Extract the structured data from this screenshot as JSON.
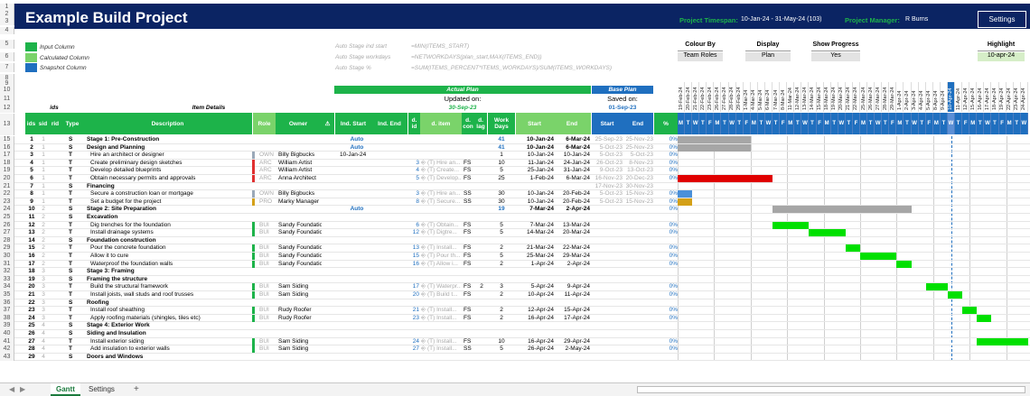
{
  "header": {
    "title": "Example Build Project",
    "timespan_label": "Project Timespan:",
    "timespan_value": "10-Jan-24  -  31-May-24 (103)",
    "manager_label": "Project Manager:",
    "manager_value": "R Burns",
    "settings_label": "Settings"
  },
  "legend": [
    {
      "label": "Input Column",
      "color": "#1db34a"
    },
    {
      "label": "Calculated Column",
      "color": "#7ad36a"
    },
    {
      "label": "Snapshot Column",
      "color": "#1f6fbf"
    }
  ],
  "auto_stage": [
    {
      "label": "Auto Stage ind start",
      "formula": "=MIN(ITEMS_START)"
    },
    {
      "label": "Auto Stage workdays",
      "formula": "=NETWORKDAYS(plan_start,MAX(ITEMS_END))"
    },
    {
      "label": "Auto Stage %",
      "formula": "=SUM(ITEMS_PERCENT*ITEMS_WORKDAYS)/SUM(ITEMS_WORKDAYS)"
    }
  ],
  "controls": [
    {
      "label": "Colour By",
      "value": "Team Roles"
    },
    {
      "label": "Display",
      "value": "Plan"
    },
    {
      "label": "Show Progress",
      "value": "Yes"
    },
    {
      "label": "Highlight",
      "value": "10-apr-24"
    }
  ],
  "plan": {
    "actual_title": "Actual Plan",
    "updated_on": "Updated on:",
    "updated_date": "30-Sep-23",
    "base_title": "Base Plan",
    "saved_on": "Saved on:",
    "saved_date": "01-Sep-23"
  },
  "groups": {
    "ids": "ids",
    "item_details": "Item Details"
  },
  "columns": {
    "ids": "ids",
    "sid": "sid",
    "rid": "rid",
    "type": "Type",
    "description": "Description",
    "role": "Role",
    "owner": "Owner",
    "warn": "⚠",
    "ind_start": "Ind. Start",
    "ind_end": "Ind. End",
    "d_id": "d. id",
    "d_item": "d. item",
    "d_con": "d. con",
    "d_lag": "d. lag",
    "work_days": "Work Days",
    "start": "Start",
    "end": "End",
    "base_start": "Start",
    "base_end": "End",
    "pct": "%"
  },
  "gantt_dates": [
    "19-Feb-24",
    "20-Feb-24",
    "21-Feb-24",
    "22-Feb-24",
    "23-Feb-24",
    "26-Feb-24",
    "27-Feb-24",
    "28-Feb-24",
    "29-Feb-24",
    "1-Mar-24",
    "4-Mar-24",
    "5-Mar-24",
    "6-Mar-24",
    "7-Mar-24",
    "8-Mar-24",
    "11-Mar-24",
    "12-Mar-24",
    "13-Mar-24",
    "14-Mar-24",
    "15-Mar-24",
    "18-Mar-24",
    "19-Mar-24",
    "20-Mar-24",
    "21-Mar-24",
    "22-Mar-24",
    "25-Mar-24",
    "26-Mar-24",
    "27-Mar-24",
    "28-Mar-24",
    "29-Mar-24",
    "1-Apr-24",
    "2-Apr-24",
    "3-Apr-24",
    "4-Apr-24",
    "5-Apr-24",
    "8-Apr-24",
    "9-Apr-24",
    "10-Apr-24",
    "11-Apr-24",
    "12-Apr-24",
    "15-Apr-24",
    "16-Apr-24",
    "17-Apr-24",
    "18-Apr-24",
    "19-Apr-24",
    "22-Apr-24",
    "23-Apr-24",
    "24-Apr-24"
  ],
  "weekdays": [
    "M",
    "T",
    "W",
    "T",
    "F"
  ],
  "rows": [
    {
      "r": "15",
      "id": "1",
      "sid": "1",
      "rid": "",
      "type": "S",
      "desc": "Stage 1: Pre-Construction",
      "bold": true,
      "indent": 0,
      "role": "",
      "roleColor": "",
      "owner": "",
      "indStart": "Auto",
      "did": "",
      "ditem": "",
      "dcon": "",
      "dlag": "",
      "work": "41",
      "start": "10-Jan-24",
      "end": "6-Mar-24",
      "bstart": "25-Sep-23",
      "bend": "25-Nov-23",
      "pct": "0%",
      "bar": {
        "from": 0,
        "to": 10,
        "color": "#a6a6a6"
      }
    },
    {
      "r": "16",
      "id": "2",
      "sid": "1",
      "rid": "",
      "type": "S",
      "desc": "Design and Planning",
      "bold": true,
      "indent": 0,
      "role": "",
      "roleColor": "",
      "owner": "",
      "indStart": "Auto",
      "did": "",
      "ditem": "",
      "dcon": "",
      "dlag": "",
      "work": "41",
      "start": "10-Jan-24",
      "end": "6-Mar-24",
      "bstart": "5-Oct-23",
      "bend": "25-Nov-23",
      "pct": "0%",
      "bar": {
        "from": 0,
        "to": 10,
        "color": "#a6a6a6"
      }
    },
    {
      "r": "17",
      "id": "3",
      "sid": "1",
      "rid": "",
      "type": "T",
      "desc": "Hire an architect or designer",
      "bold": false,
      "indent": 1,
      "role": "OWN",
      "roleColor": "#9aa8b8",
      "owner": "Billy Bigbucks",
      "indStart": "10-Jan-24",
      "did": "",
      "ditem": "",
      "dcon": "",
      "dlag": "",
      "work": "1",
      "start": "10-Jan-24",
      "end": "10-Jan-24",
      "bstart": "5-Oct-23",
      "bend": "5-Oct-23",
      "pct": "0%",
      "bar": null
    },
    {
      "r": "18",
      "id": "4",
      "sid": "1",
      "rid": "",
      "type": "T",
      "desc": "Create preliminary design sketches",
      "bold": false,
      "indent": 1,
      "role": "ARC",
      "roleColor": "#e03030",
      "owner": "William Artist",
      "indStart": "",
      "did": "3",
      "ditem": "(T) Hire an...",
      "dcon": "FS",
      "dlag": "",
      "work": "10",
      "start": "11-Jan-24",
      "end": "24-Jan-24",
      "bstart": "26-Oct-23",
      "bend": "8-Nov-23",
      "pct": "0%",
      "bar": null
    },
    {
      "r": "19",
      "id": "5",
      "sid": "1",
      "rid": "",
      "type": "T",
      "desc": "Develop detailed blueprints",
      "bold": false,
      "indent": 1,
      "role": "ARC",
      "roleColor": "#e03030",
      "owner": "William Artist",
      "indStart": "",
      "did": "4",
      "ditem": "(T) Create...",
      "dcon": "FS",
      "dlag": "",
      "work": "5",
      "start": "25-Jan-24",
      "end": "31-Jan-24",
      "bstart": "9-Oct-23",
      "bend": "13-Oct-23",
      "pct": "0%",
      "bar": null
    },
    {
      "r": "20",
      "id": "6",
      "sid": "1",
      "rid": "",
      "type": "T",
      "desc": "Obtain necessary permits and approvals",
      "bold": false,
      "indent": 1,
      "role": "ARC",
      "roleColor": "#e03030",
      "owner": "Anna Architect",
      "indStart": "",
      "did": "5",
      "ditem": "(T) Develop...",
      "dcon": "FS",
      "dlag": "",
      "work": "25",
      "start": "1-Feb-24",
      "end": "6-Mar-24",
      "bstart": "16-Nov-23",
      "bend": "20-Dec-23",
      "pct": "0%",
      "bar": {
        "from": 0,
        "to": 13,
        "color": "#e00000"
      }
    },
    {
      "r": "21",
      "id": "7",
      "sid": "1",
      "rid": "",
      "type": "S",
      "desc": "Financing",
      "bold": true,
      "indent": 0,
      "role": "",
      "roleColor": "",
      "owner": "",
      "indStart": "",
      "did": "",
      "ditem": "",
      "dcon": "",
      "dlag": "",
      "work": "",
      "start": "",
      "end": "",
      "bstart": "17-Nov-23",
      "bend": "30-Nov-23",
      "pct": "",
      "bar": null
    },
    {
      "r": "22",
      "id": "8",
      "sid": "1",
      "rid": "",
      "type": "T",
      "desc": "Secure a construction loan or mortgage",
      "bold": false,
      "indent": 1,
      "role": "OWN",
      "roleColor": "#9aa8b8",
      "owner": "Billy Bigbucks",
      "indStart": "",
      "did": "3",
      "ditem": "(T) Hire an...",
      "dcon": "SS",
      "dlag": "",
      "work": "30",
      "start": "10-Jan-24",
      "end": "20-Feb-24",
      "bstart": "5-Oct-23",
      "bend": "15-Nov-23",
      "pct": "0%",
      "bar": {
        "from": 0,
        "to": 2,
        "color": "#4a90d9"
      }
    },
    {
      "r": "23",
      "id": "9",
      "sid": "1",
      "rid": "",
      "type": "T",
      "desc": "Set a budget for the project",
      "bold": false,
      "indent": 1,
      "role": "PRO",
      "roleColor": "#d4a017",
      "owner": "Marky Manager",
      "indStart": "",
      "did": "8",
      "ditem": "(T) Secure...",
      "dcon": "SS",
      "dlag": "",
      "work": "30",
      "start": "10-Jan-24",
      "end": "20-Feb-24",
      "bstart": "5-Oct-23",
      "bend": "15-Nov-23",
      "pct": "0%",
      "bar": {
        "from": 0,
        "to": 2,
        "color": "#d4a017"
      }
    },
    {
      "r": "24",
      "id": "10",
      "sid": "2",
      "rid": "",
      "type": "S",
      "desc": "Stage 2: Site Preparation",
      "bold": true,
      "indent": 0,
      "role": "",
      "roleColor": "",
      "owner": "",
      "indStart": "Auto",
      "did": "",
      "ditem": "",
      "dcon": "",
      "dlag": "",
      "work": "19",
      "start": "7-Mar-24",
      "end": "2-Apr-24",
      "bstart": "",
      "bend": "",
      "pct": "0%",
      "bar": {
        "from": 13,
        "to": 32,
        "color": "#a6a6a6"
      }
    },
    {
      "r": "25",
      "id": "11",
      "sid": "2",
      "rid": "",
      "type": "S",
      "desc": "Excavation",
      "bold": true,
      "indent": 0,
      "role": "",
      "roleColor": "",
      "owner": "",
      "indStart": "",
      "did": "",
      "ditem": "",
      "dcon": "",
      "dlag": "",
      "work": "",
      "start": "",
      "end": "",
      "bstart": "",
      "bend": "",
      "pct": "",
      "bar": null
    },
    {
      "r": "26",
      "id": "12",
      "sid": "2",
      "rid": "",
      "type": "T",
      "desc": "Dig trenches for the foundation",
      "bold": false,
      "indent": 1,
      "role": "BUI",
      "roleColor": "#1db34a",
      "owner": "Sandy Foundation",
      "indStart": "",
      "did": "6",
      "ditem": "(T) Obtain...",
      "dcon": "FS",
      "dlag": "",
      "work": "5",
      "start": "7-Mar-24",
      "end": "13-Mar-24",
      "bstart": "",
      "bend": "",
      "pct": "0%",
      "bar": {
        "from": 13,
        "to": 18,
        "color": "#00e000"
      }
    },
    {
      "r": "27",
      "id": "13",
      "sid": "2",
      "rid": "",
      "type": "T",
      "desc": "Install drainage systems",
      "bold": false,
      "indent": 1,
      "role": "BUI",
      "roleColor": "#1db34a",
      "owner": "Sandy Foundation",
      "indStart": "",
      "did": "12",
      "ditem": "(T) Digtre...",
      "dcon": "FS",
      "dlag": "",
      "work": "5",
      "start": "14-Mar-24",
      "end": "20-Mar-24",
      "bstart": "",
      "bend": "",
      "pct": "0%",
      "bar": {
        "from": 18,
        "to": 23,
        "color": "#00e000"
      }
    },
    {
      "r": "28",
      "id": "14",
      "sid": "2",
      "rid": "",
      "type": "S",
      "desc": "Foundation construction",
      "bold": true,
      "indent": 0,
      "role": "",
      "roleColor": "",
      "owner": "",
      "indStart": "",
      "did": "",
      "ditem": "",
      "dcon": "",
      "dlag": "",
      "work": "",
      "start": "",
      "end": "",
      "bstart": "",
      "bend": "",
      "pct": "",
      "bar": null
    },
    {
      "r": "29",
      "id": "15",
      "sid": "2",
      "rid": "",
      "type": "T",
      "desc": "Pour the concrete foundation",
      "bold": false,
      "indent": 1,
      "role": "BUI",
      "roleColor": "#1db34a",
      "owner": "Sandy Foundation",
      "indStart": "",
      "did": "13",
      "ditem": "(T) Install...",
      "dcon": "FS",
      "dlag": "",
      "work": "2",
      "start": "21-Mar-24",
      "end": "22-Mar-24",
      "bstart": "",
      "bend": "",
      "pct": "0%",
      "bar": {
        "from": 23,
        "to": 25,
        "color": "#00e000"
      }
    },
    {
      "r": "30",
      "id": "16",
      "sid": "2",
      "rid": "",
      "type": "T",
      "desc": "Allow it to cure",
      "bold": false,
      "indent": 1,
      "role": "BUI",
      "roleColor": "#1db34a",
      "owner": "Sandy Foundation",
      "indStart": "",
      "did": "15",
      "ditem": "(T) Pour th...",
      "dcon": "FS",
      "dlag": "",
      "work": "5",
      "start": "25-Mar-24",
      "end": "29-Mar-24",
      "bstart": "",
      "bend": "",
      "pct": "0%",
      "bar": {
        "from": 25,
        "to": 30,
        "color": "#00e000"
      }
    },
    {
      "r": "31",
      "id": "17",
      "sid": "2",
      "rid": "",
      "type": "T",
      "desc": "Waterproof the foundation walls",
      "bold": false,
      "indent": 1,
      "role": "BUI",
      "roleColor": "#1db34a",
      "owner": "Sandy Foundation",
      "indStart": "",
      "did": "16",
      "ditem": "(T) Allow i...",
      "dcon": "FS",
      "dlag": "",
      "work": "2",
      "start": "1-Apr-24",
      "end": "2-Apr-24",
      "bstart": "",
      "bend": "",
      "pct": "0%",
      "bar": {
        "from": 30,
        "to": 32,
        "color": "#00e000"
      }
    },
    {
      "r": "32",
      "id": "18",
      "sid": "3",
      "rid": "",
      "type": "S",
      "desc": "Stage 3: Framing",
      "bold": true,
      "indent": 0,
      "role": "",
      "roleColor": "",
      "owner": "",
      "indStart": "",
      "did": "",
      "ditem": "",
      "dcon": "",
      "dlag": "",
      "work": "",
      "start": "",
      "end": "",
      "bstart": "",
      "bend": "",
      "pct": "",
      "bar": null
    },
    {
      "r": "33",
      "id": "19",
      "sid": "3",
      "rid": "",
      "type": "S",
      "desc": "Framing the structure",
      "bold": true,
      "indent": 0,
      "role": "",
      "roleColor": "",
      "owner": "",
      "indStart": "",
      "did": "",
      "ditem": "",
      "dcon": "",
      "dlag": "",
      "work": "",
      "start": "",
      "end": "",
      "bstart": "",
      "bend": "",
      "pct": "",
      "bar": null
    },
    {
      "r": "34",
      "id": "20",
      "sid": "3",
      "rid": "",
      "type": "T",
      "desc": "Build the structural framework",
      "bold": false,
      "indent": 1,
      "role": "BUI",
      "roleColor": "#1db34a",
      "owner": "Sam Siding",
      "indStart": "",
      "did": "17",
      "ditem": "(T) Waterpr...",
      "dcon": "FS",
      "dlag": "2",
      "work": "3",
      "start": "5-Apr-24",
      "end": "9-Apr-24",
      "bstart": "",
      "bend": "",
      "pct": "0%",
      "bar": {
        "from": 34,
        "to": 37,
        "color": "#00e000"
      }
    },
    {
      "r": "35",
      "id": "21",
      "sid": "3",
      "rid": "",
      "type": "T",
      "desc": "Install joists, wall studs and roof trusses",
      "bold": false,
      "indent": 1,
      "role": "BUI",
      "roleColor": "#1db34a",
      "owner": "Sam Siding",
      "indStart": "",
      "did": "20",
      "ditem": "(T) Build t...",
      "dcon": "FS",
      "dlag": "",
      "work": "2",
      "start": "10-Apr-24",
      "end": "11-Apr-24",
      "bstart": "",
      "bend": "",
      "pct": "0%",
      "bar": {
        "from": 37,
        "to": 39,
        "color": "#00e000"
      }
    },
    {
      "r": "36",
      "id": "22",
      "sid": "3",
      "rid": "",
      "type": "S",
      "desc": "Roofing",
      "bold": true,
      "indent": 0,
      "role": "",
      "roleColor": "",
      "owner": "",
      "indStart": "",
      "did": "",
      "ditem": "",
      "dcon": "",
      "dlag": "",
      "work": "",
      "start": "",
      "end": "",
      "bstart": "",
      "bend": "",
      "pct": "",
      "bar": null
    },
    {
      "r": "37",
      "id": "23",
      "sid": "3",
      "rid": "",
      "type": "T",
      "desc": "Install roof sheathing",
      "bold": false,
      "indent": 1,
      "role": "BUI",
      "roleColor": "#1db34a",
      "owner": "Rudy Roofer",
      "indStart": "",
      "did": "21",
      "ditem": "(T) Install...",
      "dcon": "FS",
      "dlag": "",
      "work": "2",
      "start": "12-Apr-24",
      "end": "15-Apr-24",
      "bstart": "",
      "bend": "",
      "pct": "0%",
      "bar": {
        "from": 39,
        "to": 41,
        "color": "#00e000"
      }
    },
    {
      "r": "38",
      "id": "24",
      "sid": "3",
      "rid": "",
      "type": "T",
      "desc": "Apply roofing materials (shingles, tiles etc)",
      "bold": false,
      "indent": 1,
      "role": "BUI",
      "roleColor": "#1db34a",
      "owner": "Rudy Roofer",
      "indStart": "",
      "did": "23",
      "ditem": "(T) Install...",
      "dcon": "FS",
      "dlag": "",
      "work": "2",
      "start": "16-Apr-24",
      "end": "17-Apr-24",
      "bstart": "",
      "bend": "",
      "pct": "0%",
      "bar": {
        "from": 41,
        "to": 43,
        "color": "#00e000"
      }
    },
    {
      "r": "39",
      "id": "25",
      "sid": "4",
      "rid": "",
      "type": "S",
      "desc": "Stage 4: Exterior Work",
      "bold": true,
      "indent": 0,
      "role": "",
      "roleColor": "",
      "owner": "",
      "indStart": "",
      "did": "",
      "ditem": "",
      "dcon": "",
      "dlag": "",
      "work": "",
      "start": "",
      "end": "",
      "bstart": "",
      "bend": "",
      "pct": "",
      "bar": null
    },
    {
      "r": "40",
      "id": "26",
      "sid": "4",
      "rid": "",
      "type": "S",
      "desc": "Siding and Insulation",
      "bold": true,
      "indent": 0,
      "role": "",
      "roleColor": "",
      "owner": "",
      "indStart": "",
      "did": "",
      "ditem": "",
      "dcon": "",
      "dlag": "",
      "work": "",
      "start": "",
      "end": "",
      "bstart": "",
      "bend": "",
      "pct": "",
      "bar": null
    },
    {
      "r": "41",
      "id": "27",
      "sid": "4",
      "rid": "",
      "type": "T",
      "desc": "Install exterior siding",
      "bold": false,
      "indent": 1,
      "role": "BUI",
      "roleColor": "#1db34a",
      "owner": "Sam Siding",
      "indStart": "",
      "did": "24",
      "ditem": "(T) Install...",
      "dcon": "FS",
      "dlag": "",
      "work": "10",
      "start": "16-Apr-24",
      "end": "29-Apr-24",
      "bstart": "",
      "bend": "",
      "pct": "0%",
      "bar": {
        "from": 41,
        "to": 48,
        "color": "#00e000"
      }
    },
    {
      "r": "42",
      "id": "28",
      "sid": "4",
      "rid": "",
      "type": "T",
      "desc": "Add insulation to exterior walls",
      "bold": false,
      "indent": 1,
      "role": "BUI",
      "roleColor": "#1db34a",
      "owner": "Sam Siding",
      "indStart": "",
      "did": "27",
      "ditem": "(T) Install...",
      "dcon": "SS",
      "dlag": "",
      "work": "5",
      "start": "26-Apr-24",
      "end": "2-May-24",
      "bstart": "",
      "bend": "",
      "pct": "0%",
      "bar": null
    },
    {
      "r": "43",
      "id": "29",
      "sid": "4",
      "rid": "",
      "type": "S",
      "desc": "Doors and Windows",
      "bold": true,
      "indent": 0,
      "role": "",
      "roleColor": "",
      "owner": "",
      "indStart": "",
      "did": "",
      "ditem": "",
      "dcon": "",
      "dlag": "",
      "work": "",
      "start": "",
      "end": "",
      "bstart": "",
      "bend": "",
      "pct": "",
      "bar": null
    }
  ],
  "tabs": [
    {
      "label": "Gantt",
      "active": true
    },
    {
      "label": "Settings",
      "active": false
    }
  ],
  "add_sheet": "+"
}
